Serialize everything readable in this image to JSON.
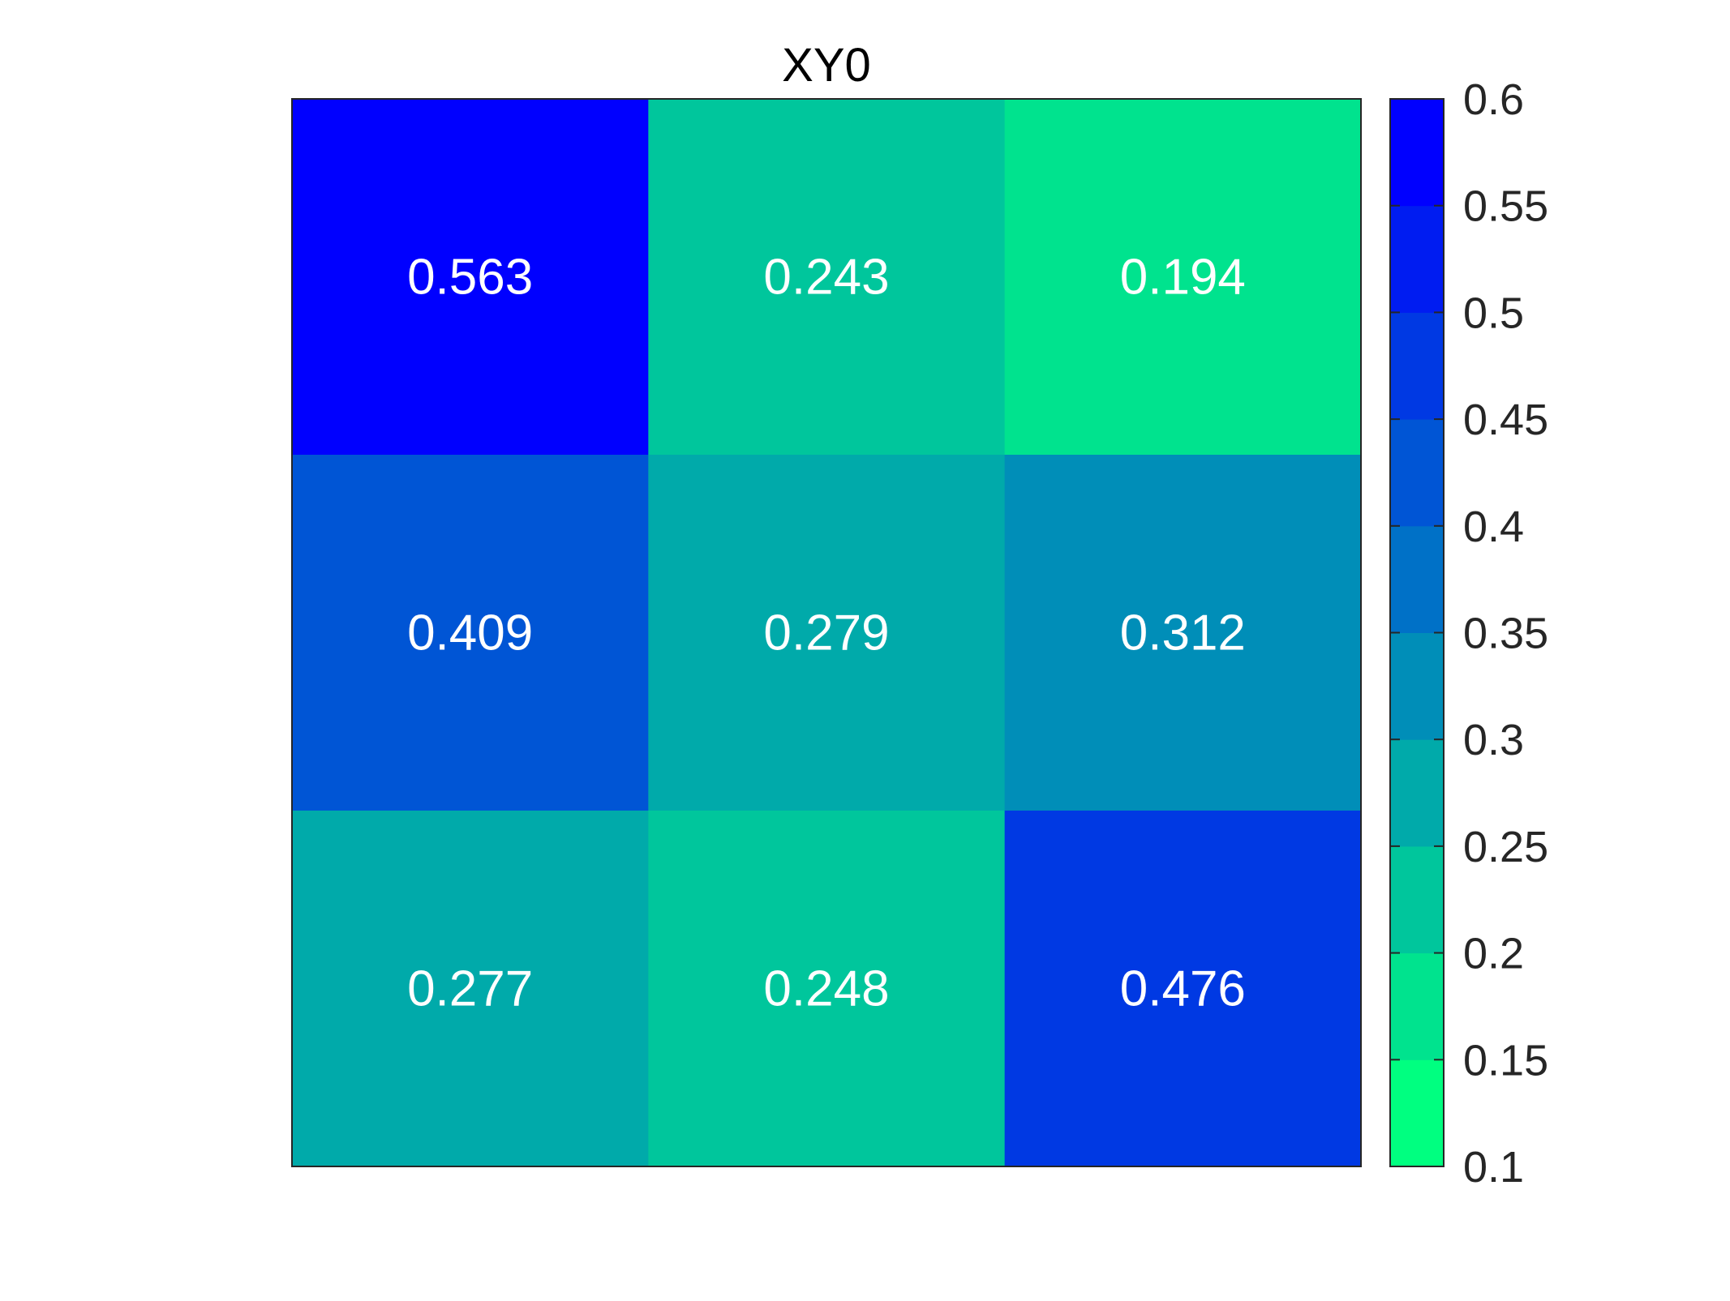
{
  "chart_data": {
    "type": "heatmap",
    "title": "XY0",
    "matrix": [
      [
        0.563,
        0.243,
        0.194
      ],
      [
        0.409,
        0.279,
        0.312
      ],
      [
        0.277,
        0.248,
        0.476
      ]
    ],
    "cell_labels": [
      [
        "0.563",
        "0.243",
        "0.194"
      ],
      [
        "0.409",
        "0.279",
        "0.312"
      ],
      [
        "0.277",
        "0.248",
        "0.476"
      ]
    ],
    "colorbar": {
      "range": [
        0.1,
        0.6
      ],
      "ticks": [
        0.1,
        0.15,
        0.2,
        0.25,
        0.3,
        0.35,
        0.4,
        0.45,
        0.5,
        0.55,
        0.6
      ],
      "tick_labels": [
        "0.1",
        "0.15",
        "0.2",
        "0.25",
        "0.3",
        "0.35",
        "0.4",
        "0.45",
        "0.5",
        "0.55",
        "0.6"
      ],
      "levels": 10,
      "color_low": "#00ff80",
      "color_high": "#0000ff"
    },
    "cell_text_color": "#ffffff",
    "grid": false
  }
}
